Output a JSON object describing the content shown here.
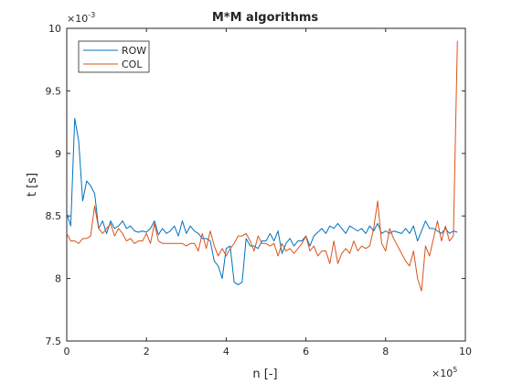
{
  "chart_data": {
    "type": "line",
    "title": "M*M algorithms",
    "xlabel": "n [-]",
    "ylabel": "t [s]",
    "x_exponent_label": "×10",
    "x_exponent_power": "5",
    "y_exponent_label": "×10",
    "y_exponent_power": "-3",
    "xlim": [
      0,
      10
    ],
    "ylim": [
      7.5,
      10
    ],
    "xticks": [
      0,
      2,
      4,
      6,
      8,
      10
    ],
    "xtick_labels": [
      "0",
      "2",
      "4",
      "6",
      "8",
      "10"
    ],
    "yticks": [
      7.5,
      8,
      8.5,
      9,
      9.5,
      10
    ],
    "ytick_labels": [
      "7.5",
      "8",
      "8.5",
      "9",
      "9.5",
      "10"
    ],
    "grid": false,
    "legend_position": "top-left",
    "series": [
      {
        "name": "ROW",
        "color": "#0072bd",
        "x": [
          0.0,
          0.1,
          0.2,
          0.3,
          0.4,
          0.5,
          0.6,
          0.7,
          0.8,
          0.9,
          1.0,
          1.1,
          1.2,
          1.3,
          1.4,
          1.5,
          1.6,
          1.7,
          1.8,
          1.9,
          2.0,
          2.1,
          2.2,
          2.3,
          2.4,
          2.5,
          2.6,
          2.7,
          2.8,
          2.9,
          3.0,
          3.1,
          3.2,
          3.3,
          3.4,
          3.5,
          3.6,
          3.7,
          3.8,
          3.9,
          4.0,
          4.1,
          4.2,
          4.3,
          4.4,
          4.5,
          4.6,
          4.7,
          4.8,
          4.9,
          5.0,
          5.1,
          5.2,
          5.3,
          5.4,
          5.5,
          5.6,
          5.7,
          5.8,
          5.9,
          6.0,
          6.1,
          6.2,
          6.3,
          6.4,
          6.5,
          6.6,
          6.7,
          6.8,
          6.9,
          7.0,
          7.1,
          7.2,
          7.3,
          7.4,
          7.5,
          7.6,
          7.7,
          7.8,
          7.9,
          8.0,
          8.1,
          8.2,
          8.3,
          8.4,
          8.5,
          8.6,
          8.7,
          8.8,
          8.9,
          9.0,
          9.1,
          9.2,
          9.3,
          9.4,
          9.5,
          9.6,
          9.7,
          9.8
        ],
        "values": [
          8.52,
          8.42,
          9.28,
          9.1,
          8.62,
          8.78,
          8.74,
          8.68,
          8.4,
          8.46,
          8.36,
          8.46,
          8.4,
          8.42,
          8.46,
          8.4,
          8.42,
          8.38,
          8.37,
          8.38,
          8.37,
          8.4,
          8.46,
          8.35,
          8.4,
          8.36,
          8.38,
          8.42,
          8.34,
          8.46,
          8.36,
          8.42,
          8.38,
          8.36,
          8.32,
          8.32,
          8.3,
          8.14,
          8.1,
          8.0,
          8.24,
          8.26,
          7.97,
          7.95,
          7.97,
          8.32,
          8.26,
          8.26,
          8.24,
          8.3,
          8.3,
          8.36,
          8.3,
          8.38,
          8.2,
          8.28,
          8.32,
          8.26,
          8.3,
          8.3,
          8.34,
          8.26,
          8.34,
          8.37,
          8.4,
          8.36,
          8.42,
          8.4,
          8.44,
          8.4,
          8.36,
          8.42,
          8.4,
          8.38,
          8.4,
          8.36,
          8.42,
          8.38,
          8.44,
          8.36,
          8.38,
          8.36,
          8.38,
          8.37,
          8.36,
          8.4,
          8.36,
          8.42,
          8.3,
          8.38,
          8.46,
          8.4,
          8.4,
          8.38,
          8.36,
          8.4,
          8.36,
          8.38,
          8.37
        ]
      },
      {
        "name": "COL",
        "color": "#d95319",
        "x": [
          0.0,
          0.1,
          0.2,
          0.3,
          0.4,
          0.5,
          0.6,
          0.7,
          0.8,
          0.9,
          1.0,
          1.1,
          1.2,
          1.3,
          1.4,
          1.5,
          1.6,
          1.7,
          1.8,
          1.9,
          2.0,
          2.1,
          2.2,
          2.3,
          2.4,
          2.5,
          2.6,
          2.7,
          2.8,
          2.9,
          3.0,
          3.1,
          3.2,
          3.3,
          3.4,
          3.5,
          3.6,
          3.7,
          3.8,
          3.9,
          4.0,
          4.1,
          4.2,
          4.3,
          4.4,
          4.5,
          4.6,
          4.7,
          4.8,
          4.9,
          5.0,
          5.1,
          5.2,
          5.3,
          5.4,
          5.5,
          5.6,
          5.7,
          5.8,
          5.9,
          6.0,
          6.1,
          6.2,
          6.3,
          6.4,
          6.5,
          6.6,
          6.7,
          6.8,
          6.9,
          7.0,
          7.1,
          7.2,
          7.3,
          7.4,
          7.5,
          7.6,
          7.7,
          7.8,
          7.9,
          8.0,
          8.1,
          8.2,
          8.3,
          8.4,
          8.5,
          8.6,
          8.7,
          8.8,
          8.9,
          9.0,
          9.1,
          9.2,
          9.3,
          9.4,
          9.5,
          9.6,
          9.7,
          9.8
        ],
        "values": [
          8.36,
          8.3,
          8.3,
          8.28,
          8.32,
          8.32,
          8.34,
          8.58,
          8.4,
          8.36,
          8.4,
          8.44,
          8.34,
          8.4,
          8.36,
          8.3,
          8.32,
          8.28,
          8.3,
          8.3,
          8.36,
          8.28,
          8.44,
          8.3,
          8.28,
          8.28,
          8.28,
          8.28,
          8.28,
          8.28,
          8.26,
          8.28,
          8.28,
          8.22,
          8.36,
          8.24,
          8.38,
          8.26,
          8.18,
          8.24,
          8.18,
          8.24,
          8.28,
          8.34,
          8.34,
          8.36,
          8.3,
          8.22,
          8.34,
          8.28,
          8.28,
          8.26,
          8.28,
          8.18,
          8.28,
          8.22,
          8.24,
          8.2,
          8.24,
          8.28,
          8.34,
          8.22,
          8.26,
          8.18,
          8.22,
          8.22,
          8.12,
          8.3,
          8.12,
          8.2,
          8.24,
          8.2,
          8.3,
          8.22,
          8.26,
          8.24,
          8.26,
          8.4,
          8.62,
          8.28,
          8.22,
          8.4,
          8.32,
          8.26,
          8.2,
          8.14,
          8.1,
          8.22,
          8.0,
          7.9,
          8.26,
          8.18,
          8.32,
          8.46,
          8.3,
          8.42,
          8.3,
          8.34,
          9.9
        ]
      }
    ]
  }
}
